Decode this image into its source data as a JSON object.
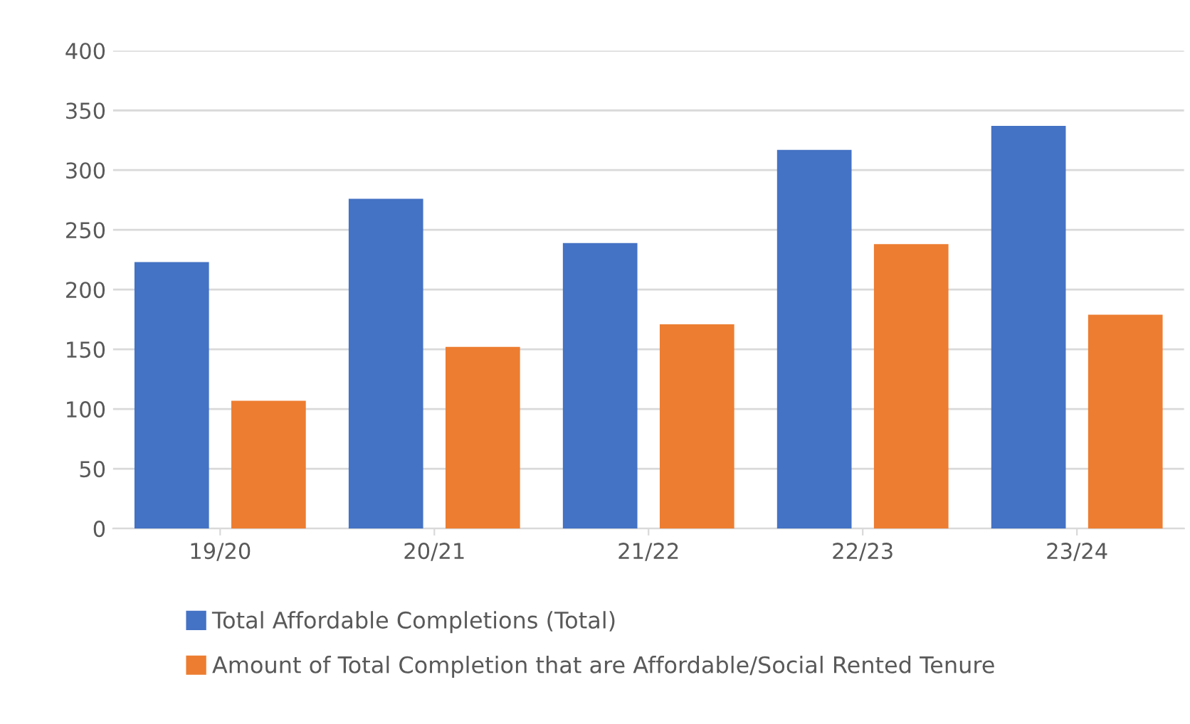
{
  "chart_data": {
    "type": "bar",
    "categories": [
      "19/20",
      "20/21",
      "21/22",
      "22/23",
      "23/24"
    ],
    "series": [
      {
        "name": "Total Affordable Completions (Total)",
        "color": "#4472c4",
        "values": [
          223,
          276,
          239,
          317,
          337
        ]
      },
      {
        "name": "Amount of Total Completion that are Affordable/Social Rented Tenure",
        "color": "#ed7d31",
        "values": [
          107,
          152,
          171,
          238,
          179
        ]
      }
    ],
    "ylim": [
      0,
      400
    ],
    "yticks": [
      0,
      50,
      100,
      150,
      200,
      250,
      300,
      350,
      400
    ],
    "grid": "y",
    "legend": "bottom"
  }
}
